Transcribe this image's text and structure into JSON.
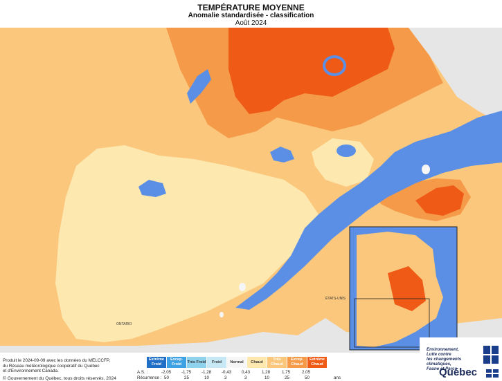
{
  "header": {
    "title": "TEMPÉRATURE MOYENNE",
    "subtitle": "Anomalie standardisée - classification",
    "date": "Août 2024"
  },
  "map_labels": {
    "usa": "ÉTATS-UNIS",
    "ontario": "ONTARIO"
  },
  "legend": {
    "classes": [
      {
        "label": "Extrême Froid",
        "color": "#1f6fc7"
      },
      {
        "label": "Excep. Froid",
        "color": "#3ea1e3"
      },
      {
        "label": "Très Froid",
        "color": "#8fd2ee"
      },
      {
        "label": "Froid",
        "color": "#c6e9f5"
      },
      {
        "label": "Normal",
        "color": "#f6f6f6"
      },
      {
        "label": "Chaud",
        "color": "#fde8b0"
      },
      {
        "label": "Très Chaud",
        "color": "#fbc77c"
      },
      {
        "label": "Excep. Chaud",
        "color": "#f59a49"
      },
      {
        "label": "Extrême Chaud",
        "color": "#ef5a17"
      }
    ],
    "as_label": "A.S. :",
    "as_values": [
      "-2,05",
      "-1,75",
      "-1,28",
      "-0,43",
      "0,43",
      "1,28",
      "1,75",
      "2,05"
    ],
    "recurrence_label": "Récurrence :",
    "recurrence_values": [
      "50",
      "25",
      "10",
      "3",
      "3",
      "10",
      "25",
      "50"
    ],
    "recurrence_unit": "ans"
  },
  "footer": {
    "credit_line1": "Produit le 2024-09-09 avec les données du MELCCFP,",
    "credit_line2": "du Réseau météorologique coopératif du Québec",
    "credit_line3": "et d'Environnement Canada.",
    "copyright": "© Gouvernement du Québec, tous droits réservés, 2024"
  },
  "brand": {
    "ministry_line1": "Environnement,",
    "ministry_line2": "Lutte contre",
    "ministry_line3": "les changements",
    "ministry_line4": "climatiques,",
    "ministry_line5": "Faune et Parcs",
    "name": "Québec"
  },
  "colors": {
    "water": "#5b8fe6",
    "outside": "#e6e6e6",
    "chaud": "#fde8b0",
    "tres_chaud": "#fbc77c",
    "excep_chaud": "#f59a49",
    "extreme_chaud": "#ef5a17",
    "normal": "#f6f6f6"
  }
}
